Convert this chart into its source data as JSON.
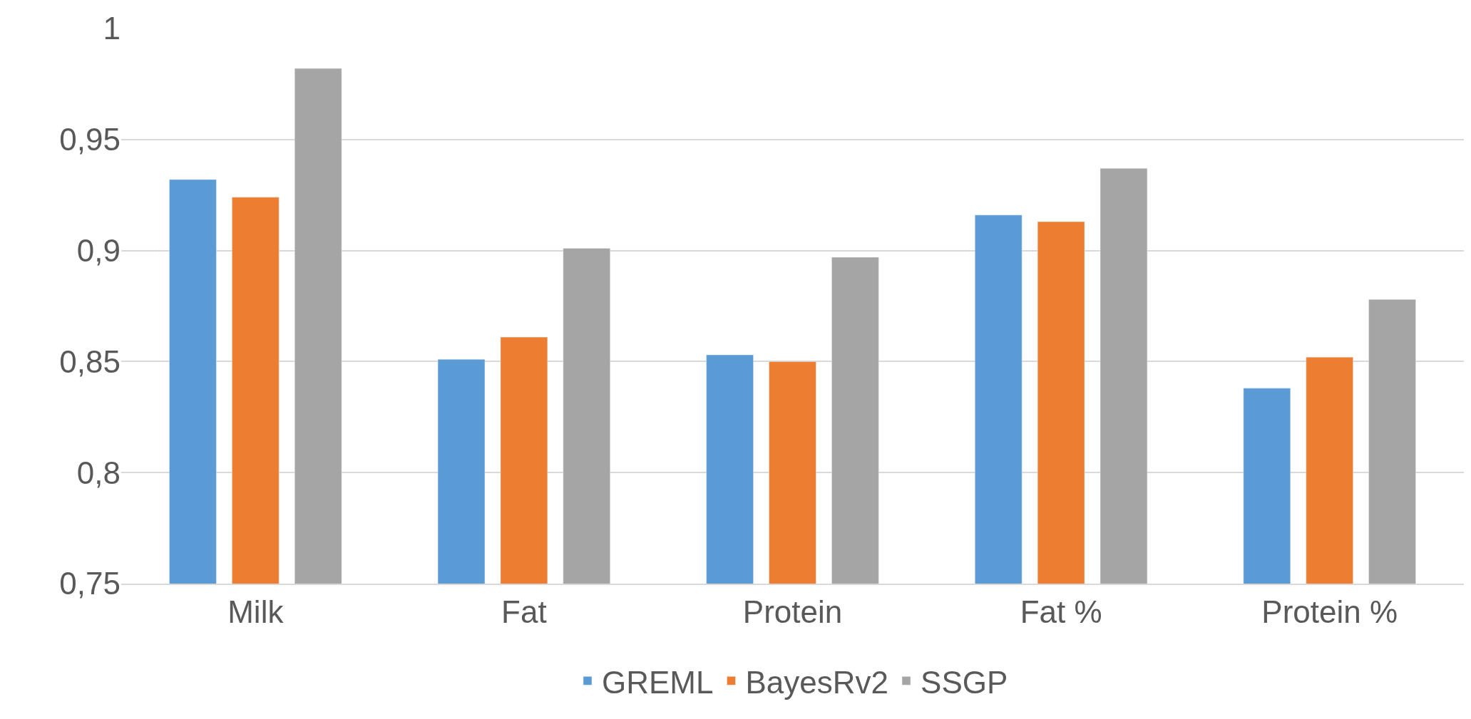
{
  "chart_data": {
    "type": "bar",
    "categories": [
      "Milk",
      "Fat",
      "Protein",
      "Fat %",
      "Protein %"
    ],
    "series": [
      {
        "name": "GREML",
        "color": "#5b9bd5",
        "values": [
          0.932,
          0.851,
          0.853,
          0.916,
          0.838
        ]
      },
      {
        "name": "BayesRv2",
        "color": "#ed7d31",
        "values": [
          0.924,
          0.861,
          0.85,
          0.913,
          0.852
        ]
      },
      {
        "name": "SSGP",
        "color": "#a5a5a5",
        "values": [
          0.982,
          0.901,
          0.897,
          0.937,
          0.878
        ]
      }
    ],
    "ylim": [
      0.75,
      1
    ],
    "yticks": [
      {
        "value": 0.75,
        "label": "0,75"
      },
      {
        "value": 0.8,
        "label": "0,8"
      },
      {
        "value": 0.85,
        "label": "0,85"
      },
      {
        "value": 0.9,
        "label": "0,9"
      },
      {
        "value": 0.95,
        "label": "0,95"
      },
      1
    ],
    "grid": "y",
    "legend": "bottom"
  }
}
